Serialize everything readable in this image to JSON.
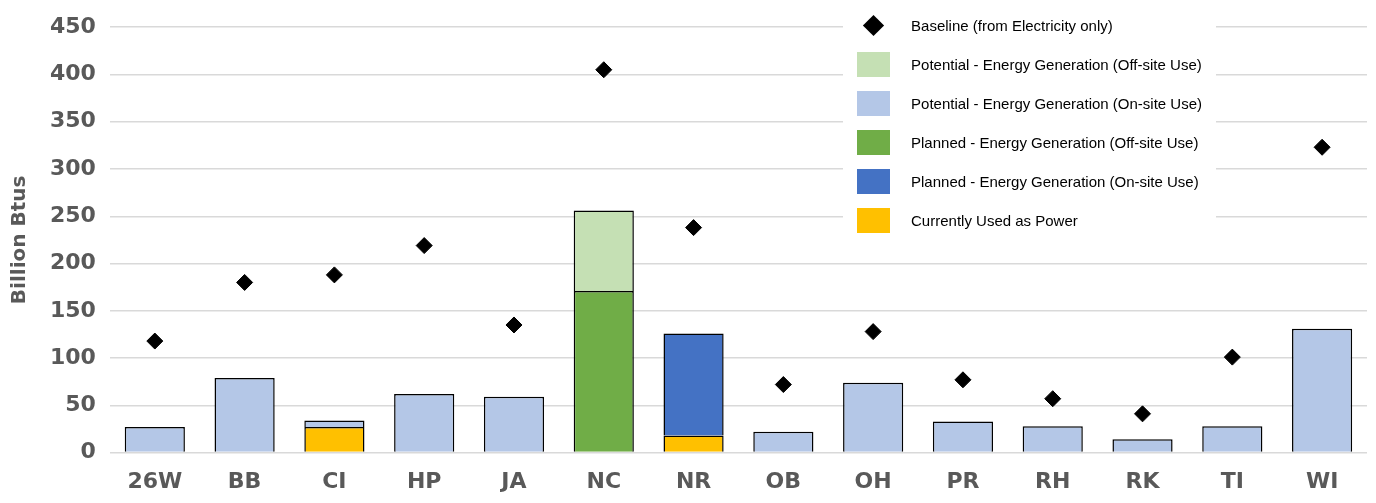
{
  "chart_data": {
    "type": "bar",
    "stacked": true,
    "ylabel": "Billion Btus",
    "categories": [
      "26W",
      "BB",
      "CI",
      "HP",
      "JA",
      "NC",
      "NR",
      "OB",
      "OH",
      "PR",
      "RH",
      "RK",
      "TI",
      "WI"
    ],
    "series": [
      {
        "name": "Currently Used as Power",
        "color": "#ffc000",
        "values": [
          null,
          null,
          27,
          null,
          null,
          null,
          18,
          null,
          null,
          null,
          null,
          null,
          null,
          null
        ]
      },
      {
        "name": "Planned - Energy Generation (On-site Use)",
        "color": "#4472c4",
        "values": [
          null,
          null,
          null,
          null,
          null,
          null,
          108,
          null,
          null,
          null,
          null,
          null,
          null,
          null
        ]
      },
      {
        "name": "Planned - Energy Generation (Off-site Use)",
        "color": "#70ad47",
        "values": [
          null,
          null,
          null,
          null,
          null,
          171,
          null,
          null,
          null,
          null,
          null,
          null,
          null,
          null
        ]
      },
      {
        "name": "Potential - Energy Generation (On-site Use)",
        "color": "#b4c7e7",
        "values": [
          27,
          79,
          7,
          62,
          59,
          null,
          null,
          22,
          74,
          33,
          28,
          14,
          28,
          131
        ]
      },
      {
        "name": "Potential - Energy Generation (Off-site Use)",
        "color": "#c5e0b4",
        "values": [
          null,
          null,
          null,
          null,
          null,
          85,
          null,
          null,
          null,
          null,
          null,
          null,
          null,
          null
        ]
      },
      {
        "name": "Baseline (from Electricity only)",
        "type": "scatter",
        "marker": "diamond",
        "color": "#000000",
        "values": [
          118,
          180,
          188,
          219,
          135,
          405,
          238,
          72,
          128,
          77,
          57,
          41,
          101,
          323
        ]
      }
    ],
    "ylim": [
      0,
      450
    ],
    "yticks": [
      0,
      50,
      100,
      150,
      200,
      250,
      300,
      350,
      400,
      450
    ],
    "grid": "y",
    "legend": "top right"
  }
}
